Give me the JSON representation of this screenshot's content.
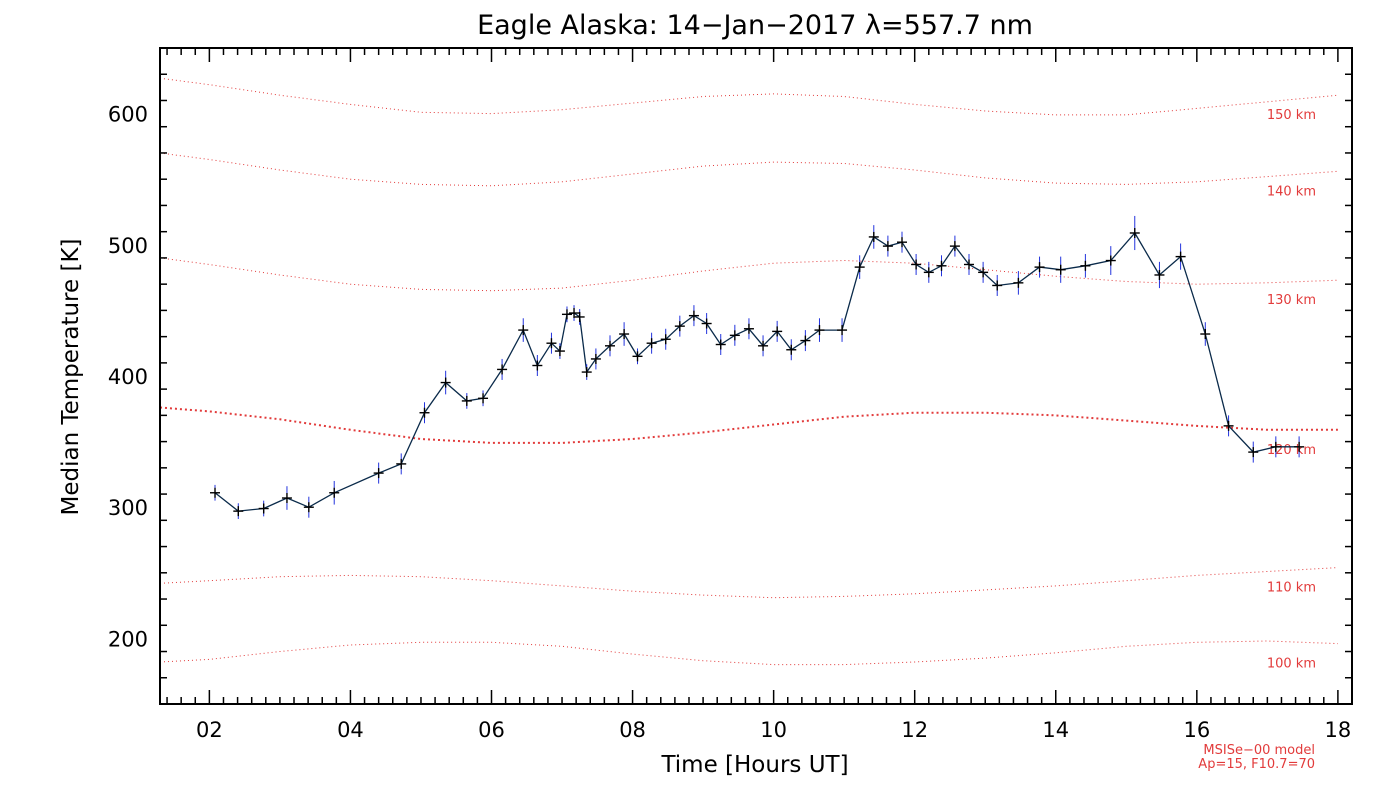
{
  "chart_data": {
    "type": "line",
    "title": "Eagle Alaska: 14−Jan−2017 λ=557.7 nm",
    "xlabel": "Time [Hours UT]",
    "ylabel": "Median Temperature [K]",
    "xlim": [
      1.3,
      18.2
    ],
    "ylim": [
      150,
      650
    ],
    "x_ticks": [
      2,
      4,
      6,
      8,
      10,
      12,
      14,
      16,
      18
    ],
    "x_tick_labels": [
      "02",
      "04",
      "06",
      "08",
      "10",
      "12",
      "14",
      "16",
      "18"
    ],
    "y_ticks": [
      200,
      300,
      400,
      500,
      600
    ],
    "y_tick_labels": [
      "200",
      "300",
      "400",
      "500",
      "600"
    ],
    "grid": false,
    "legend": "none",
    "colors": {
      "data_line": "#0a2a4a",
      "error_bar": "#2233dd",
      "marker": "#000000",
      "model": "#e23b3b"
    },
    "series": [
      {
        "x": [
          2.08,
          2.41,
          2.77,
          3.1,
          3.41,
          3.77,
          4.4,
          4.72,
          5.05,
          5.35,
          5.65,
          5.88,
          6.15,
          6.45,
          6.65,
          6.85,
          6.97,
          7.07,
          7.17,
          7.25,
          7.35,
          7.48,
          7.68,
          7.88,
          8.07,
          8.27,
          8.47,
          8.67,
          8.87,
          9.05,
          9.25,
          9.45,
          9.65,
          9.85,
          10.05,
          10.25,
          10.45,
          10.65,
          10.97,
          11.22,
          11.42,
          11.62,
          11.82,
          12.02,
          12.2,
          12.38,
          12.57,
          12.77,
          12.97,
          13.17,
          13.47,
          13.77,
          14.07,
          14.42,
          14.78,
          15.12,
          15.47,
          15.77,
          16.12,
          16.45,
          16.8,
          17.12,
          17.45
        ],
        "y": [
          311,
          297,
          299,
          307,
          300,
          311,
          326,
          333,
          372,
          395,
          381,
          383,
          405,
          435,
          408,
          425,
          419,
          447,
          448,
          445,
          403,
          413,
          423,
          432,
          415,
          425,
          428,
          438,
          446,
          440,
          424,
          431,
          436,
          423,
          434,
          420,
          427,
          435,
          435,
          483,
          506,
          499,
          502,
          485,
          479,
          484,
          499,
          485,
          479,
          469,
          471,
          483,
          481,
          484,
          488,
          509,
          477,
          491,
          432,
          362,
          342,
          346,
          346
        ],
        "err": [
          6,
          6,
          6,
          9,
          8,
          9,
          8,
          8,
          8,
          9,
          6,
          6,
          8,
          9,
          8,
          8,
          6,
          6,
          6,
          6,
          6,
          8,
          8,
          9,
          6,
          8,
          8,
          8,
          8,
          8,
          8,
          8,
          8,
          8,
          8,
          8,
          8,
          9,
          9,
          9,
          9,
          8,
          8,
          8,
          8,
          8,
          8,
          8,
          8,
          8,
          9,
          8,
          10,
          9,
          11,
          13,
          10,
          10,
          9,
          8,
          8,
          8,
          8
        ]
      }
    ],
    "model_curves": [
      {
        "label": "150 km",
        "emphasis": false,
        "x": [
          1.3,
          2,
          3,
          4,
          5,
          6,
          7,
          8,
          9,
          10,
          11,
          12,
          13,
          14,
          15,
          16,
          17,
          18
        ],
        "y": [
          627,
          622,
          614,
          607,
          601,
          600,
          603,
          608,
          613,
          615,
          613,
          607,
          602,
          599,
          599,
          604,
          609,
          614
        ]
      },
      {
        "label": "140 km",
        "emphasis": false,
        "x": [
          1.3,
          2,
          3,
          4,
          5,
          6,
          7,
          8,
          9,
          10,
          11,
          12,
          13,
          14,
          15,
          16,
          17,
          18
        ],
        "y": [
          570,
          565,
          557,
          550,
          546,
          545,
          548,
          554,
          560,
          563,
          562,
          557,
          551,
          547,
          546,
          548,
          552,
          556
        ]
      },
      {
        "label": "130 km",
        "emphasis": false,
        "x": [
          1.3,
          2,
          3,
          4,
          5,
          6,
          7,
          8,
          9,
          10,
          11,
          12,
          13,
          14,
          15,
          16,
          17,
          18
        ],
        "y": [
          490,
          485,
          477,
          470,
          466,
          465,
          467,
          473,
          480,
          486,
          488,
          486,
          481,
          476,
          472,
          470,
          471,
          473
        ]
      },
      {
        "label": "120 km",
        "emphasis": true,
        "x": [
          1.3,
          2,
          3,
          4,
          5,
          6,
          7,
          8,
          9,
          10,
          11,
          12,
          13,
          14,
          15,
          16,
          17,
          18
        ],
        "y": [
          376,
          373,
          367,
          359,
          352,
          349,
          349,
          352,
          357,
          363,
          369,
          372,
          372,
          370,
          366,
          362,
          359,
          359
        ]
      },
      {
        "label": "110 km",
        "emphasis": false,
        "x": [
          1.3,
          2,
          3,
          4,
          5,
          6,
          7,
          8,
          9,
          10,
          11,
          12,
          13,
          14,
          15,
          16,
          17,
          18
        ],
        "y": [
          242,
          244,
          247,
          248,
          247,
          244,
          240,
          236,
          233,
          231,
          232,
          234,
          237,
          240,
          244,
          248,
          251,
          254
        ]
      },
      {
        "label": "100 km",
        "emphasis": false,
        "x": [
          1.3,
          2,
          3,
          4,
          5,
          6,
          7,
          8,
          9,
          10,
          11,
          12,
          13,
          14,
          15,
          16,
          17,
          18
        ],
        "y": [
          182,
          184,
          190,
          195,
          197,
          197,
          194,
          188,
          183,
          180,
          180,
          182,
          185,
          189,
          194,
          197,
          198,
          196
        ]
      }
    ],
    "annotations": [
      "MSISe−00 model",
      "Ap=15, F10.7=70"
    ]
  }
}
